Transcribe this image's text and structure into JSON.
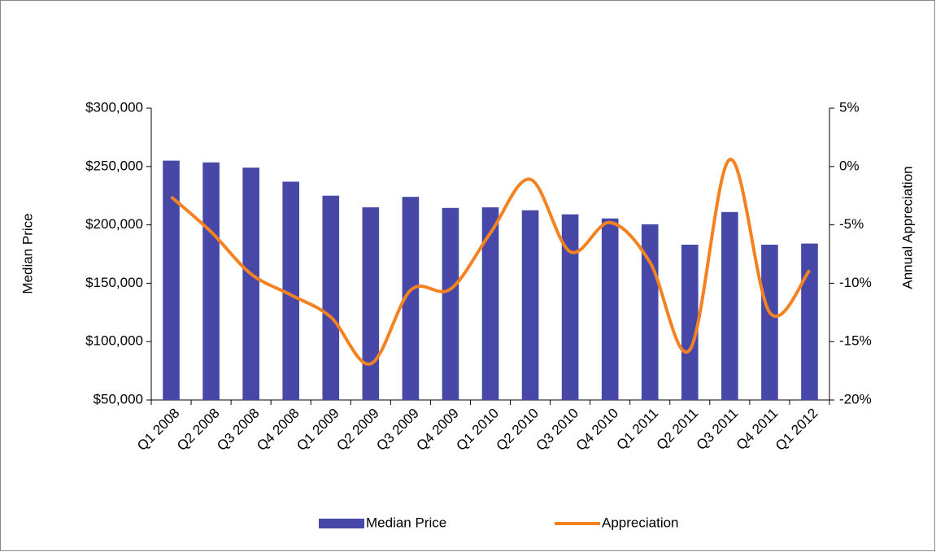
{
  "chart_data": {
    "type": "bar",
    "categories": [
      "Q1 2008",
      "Q2 2008",
      "Q3 2008",
      "Q4 2008",
      "Q1 2009",
      "Q2 2009",
      "Q3 2009",
      "Q4 2009",
      "Q1 2010",
      "Q2 2010",
      "Q3 2010",
      "Q4 2010",
      "Q1 2011",
      "Q2 2011",
      "Q3 2011",
      "Q4 2011",
      "Q1 2012"
    ],
    "y_label": "Median Price",
    "y2_label": "Annual Appreciation",
    "series": [
      {
        "name": "Median Price",
        "type": "bar",
        "color": "#4747a8",
        "values": [
          255000,
          253500,
          249000,
          237000,
          225000,
          215000,
          224000,
          214500,
          215000,
          212500,
          209000,
          205500,
          200500,
          183000,
          211000,
          183000,
          184000
        ]
      },
      {
        "name": "Appreciation",
        "type": "line",
        "axis": "y2",
        "color": "#f58220",
        "values": [
          -2.6,
          -5.6,
          -9.2,
          -11.0,
          -12.9,
          -16.9,
          -10.6,
          -10.5,
          -5.7,
          -1.1,
          -7.3,
          -4.8,
          -8.2,
          -15.7,
          0.6,
          -12.5,
          -8.9
        ]
      }
    ],
    "ylim": [
      50000,
      300000
    ],
    "yticks": [
      {
        "value": 50000,
        "label": "$50,000"
      },
      {
        "value": 100000,
        "label": "$100,000"
      },
      {
        "value": 150000,
        "label": "$150,000"
      },
      {
        "value": 200000,
        "label": "$200,000"
      },
      {
        "value": 250000,
        "label": "$250,000"
      },
      {
        "value": 300000,
        "label": "$300,000"
      }
    ],
    "y2lim": [
      -20,
      5
    ],
    "y2ticks": [
      {
        "value": -20,
        "label": "-20%"
      },
      {
        "value": -15,
        "label": "-15%"
      },
      {
        "value": -10,
        "label": "-10%"
      },
      {
        "value": -5,
        "label": "-5%"
      },
      {
        "value": 0,
        "label": "0%"
      },
      {
        "value": 5,
        "label": "5%"
      }
    ],
    "legend": "bottom"
  }
}
